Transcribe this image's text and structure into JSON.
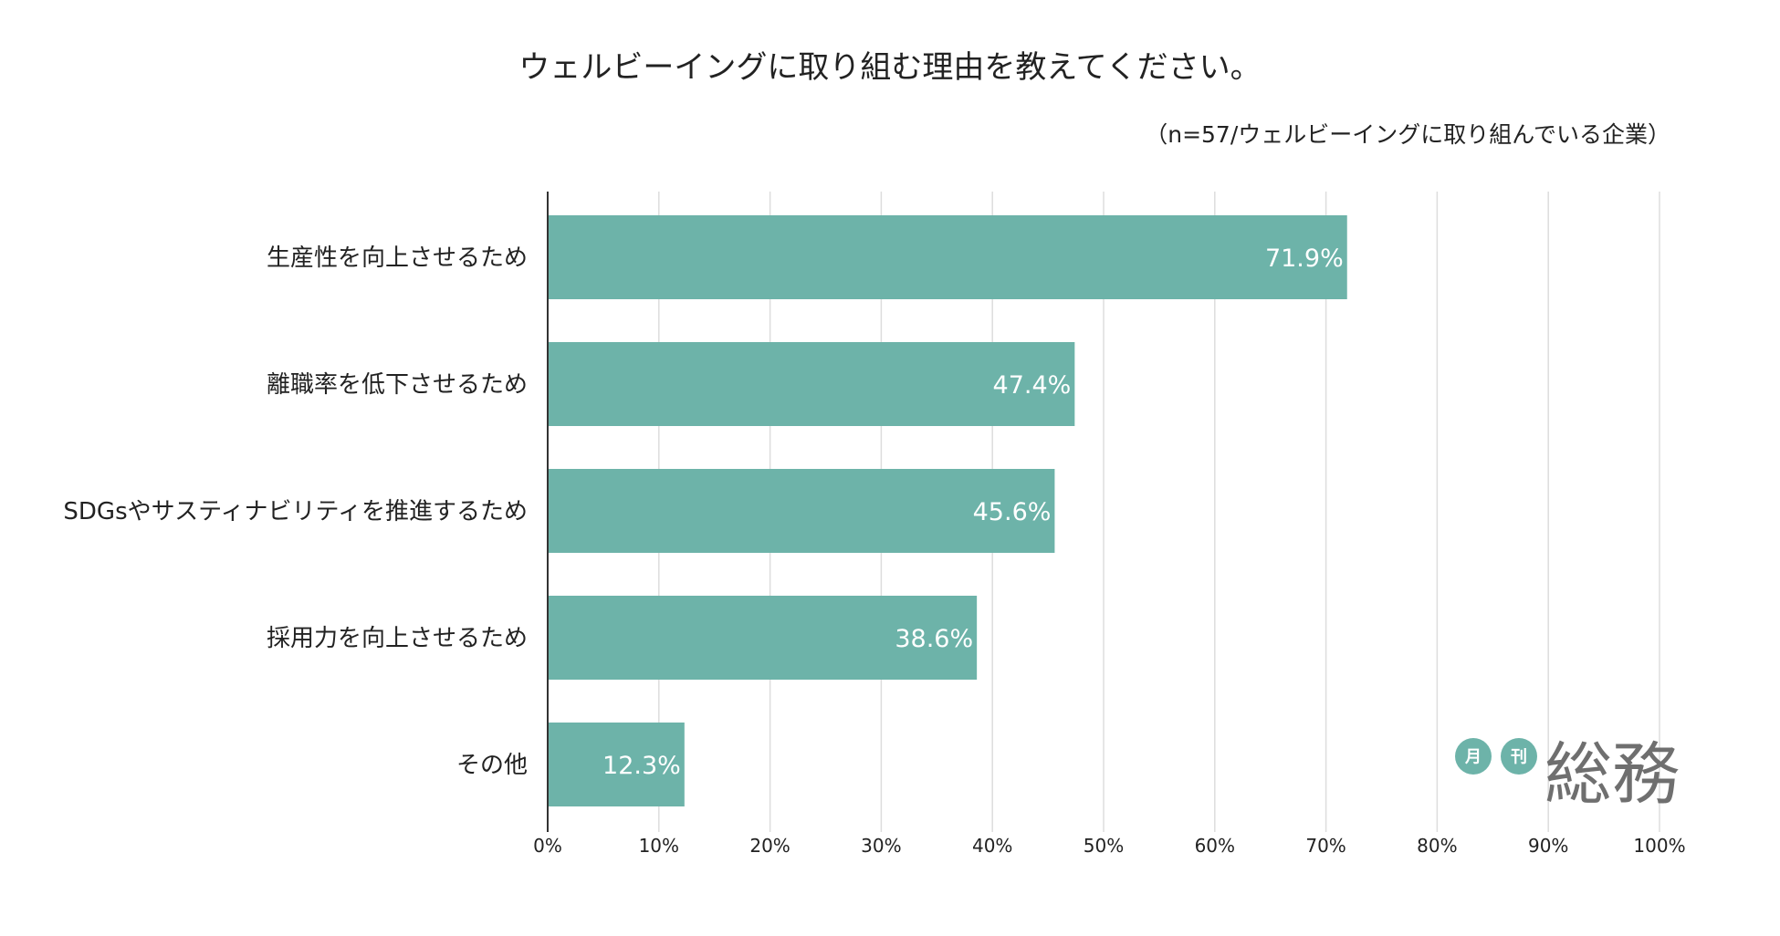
{
  "colors": {
    "bar": "#6db3a9",
    "grid": "#dddddd",
    "axis": "#333333",
    "text": "#222222",
    "logo_badge": "#6db3a9",
    "logo_text": "#6f6f6f"
  },
  "logo": {
    "badge1": "月",
    "badge2": "刊",
    "name": "総務"
  },
  "chart_data": {
    "type": "bar",
    "orientation": "horizontal",
    "title": "ウェルビーイングに取り組む理由を教えてください。",
    "subtitle": "（n=57/ウェルビーイングに取り組んでいる企業）",
    "categories": [
      "生産性を向上させるため",
      "離職率を低下させるため",
      "SDGsやサスティナビリティを推進するため",
      "採用力を向上させるため",
      "その他"
    ],
    "values": [
      71.9,
      47.4,
      45.6,
      38.6,
      12.3
    ],
    "value_labels": [
      "71.9%",
      "47.4%",
      "45.6%",
      "38.6%",
      "12.3%"
    ],
    "xlim": [
      0,
      100
    ],
    "xticks": [
      0,
      10,
      20,
      30,
      40,
      50,
      60,
      70,
      80,
      90,
      100
    ],
    "xtick_labels": [
      "0%",
      "10%",
      "20%",
      "30%",
      "40%",
      "50%",
      "60%",
      "70%",
      "80%",
      "90%",
      "100%"
    ],
    "grid": true,
    "legend": "none",
    "xlabel": "",
    "ylabel": ""
  }
}
